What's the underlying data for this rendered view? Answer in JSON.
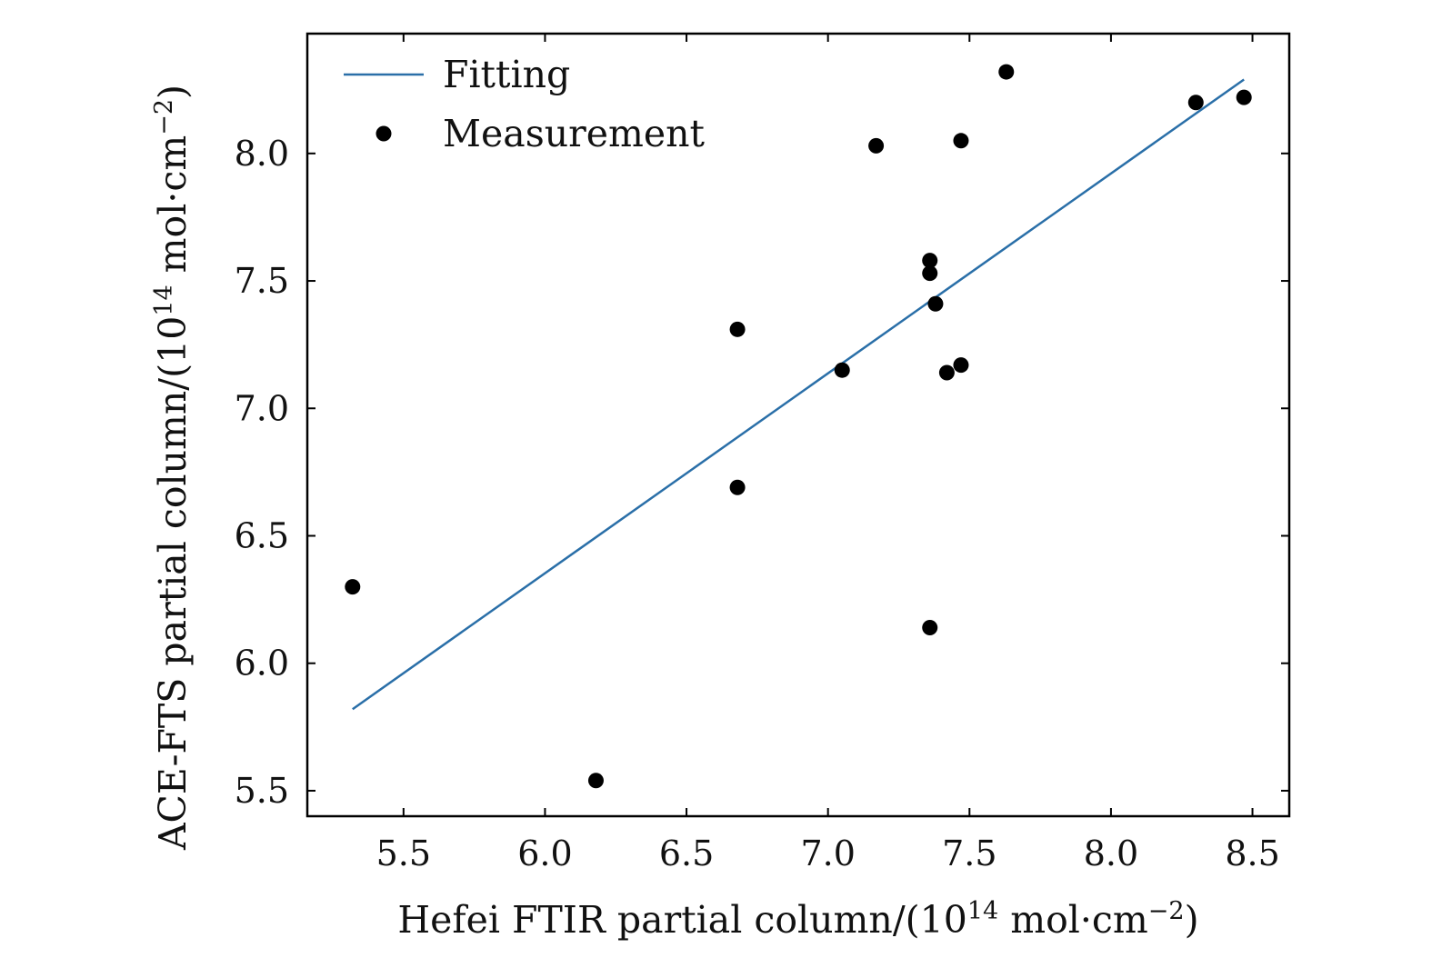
{
  "chart_data": {
    "type": "scatter",
    "title": "",
    "xlabel": {
      "main": "Hefei FTIR partial column/(10",
      "sup": "14",
      "unit": " mol·cm",
      "unit_sup": "−2",
      "close": ")"
    },
    "ylabel": {
      "main": "ACE-FTS partial column/(10",
      "sup": "14",
      "unit": " mol·cm",
      "unit_sup": "−2",
      "close": ")"
    },
    "xlim": [
      5.16,
      8.63
    ],
    "ylim": [
      5.4,
      8.47
    ],
    "xticks": [
      5.5,
      6.0,
      6.5,
      7.0,
      7.5,
      8.0,
      8.5
    ],
    "xtick_labels": [
      "5.5",
      "6.0",
      "6.5",
      "7.0",
      "7.5",
      "8.0",
      "8.5"
    ],
    "yticks": [
      5.5,
      6.0,
      6.5,
      7.0,
      7.5,
      8.0
    ],
    "ytick_labels": [
      "5.5",
      "6.0",
      "6.5",
      "7.0",
      "7.5",
      "8.0"
    ],
    "grid": false,
    "legend": {
      "placement": "top-left",
      "entries": [
        "Fitting",
        "Measurement"
      ]
    },
    "series": [
      {
        "name": "Measurement",
        "kind": "scatter",
        "color": "#000000",
        "points": [
          {
            "x": 5.32,
            "y": 6.3
          },
          {
            "x": 6.18,
            "y": 5.54
          },
          {
            "x": 6.68,
            "y": 7.31
          },
          {
            "x": 6.68,
            "y": 6.69
          },
          {
            "x": 7.05,
            "y": 7.15
          },
          {
            "x": 7.17,
            "y": 8.03
          },
          {
            "x": 7.36,
            "y": 7.58
          },
          {
            "x": 7.36,
            "y": 7.53
          },
          {
            "x": 7.38,
            "y": 7.41
          },
          {
            "x": 7.36,
            "y": 6.14
          },
          {
            "x": 7.42,
            "y": 7.14
          },
          {
            "x": 7.47,
            "y": 7.17
          },
          {
            "x": 7.47,
            "y": 8.05
          },
          {
            "x": 7.63,
            "y": 8.32
          },
          {
            "x": 8.3,
            "y": 8.2
          },
          {
            "x": 8.47,
            "y": 8.22
          }
        ]
      },
      {
        "name": "Fitting",
        "kind": "line",
        "color": "#2a6fa8",
        "points": [
          {
            "x": 5.32,
            "y": 5.82
          },
          {
            "x": 8.47,
            "y": 8.29
          }
        ]
      }
    ]
  }
}
